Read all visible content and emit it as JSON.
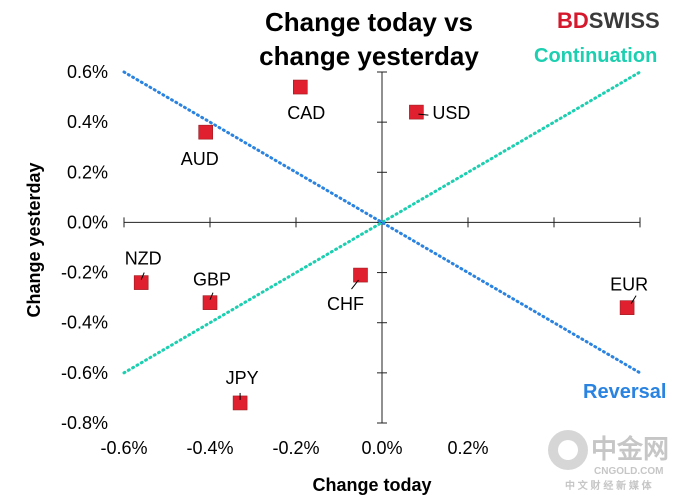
{
  "chart_data": {
    "type": "scatter",
    "title_line1": "Change today vs",
    "title_line2": "change yesterday",
    "xlabel": "Change today",
    "ylabel": "Change yesterday",
    "xlim": [
      -0.6,
      0.6
    ],
    "ylim": [
      -0.8,
      0.6
    ],
    "x_ticks": [
      {
        "value": -0.6,
        "label": "-0.6%"
      },
      {
        "value": -0.4,
        "label": "-0.4%"
      },
      {
        "value": -0.2,
        "label": "-0.2%"
      },
      {
        "value": 0.0,
        "label": "0.0%"
      },
      {
        "value": 0.2,
        "label": "0.2%"
      }
    ],
    "y_ticks": [
      {
        "value": 0.6,
        "label": "0.6%"
      },
      {
        "value": 0.4,
        "label": "0.4%"
      },
      {
        "value": 0.2,
        "label": "0.2%"
      },
      {
        "value": 0.0,
        "label": "0.0%"
      },
      {
        "value": -0.2,
        "label": "-0.2%"
      },
      {
        "value": -0.4,
        "label": "-0.4%"
      },
      {
        "value": -0.6,
        "label": "-0.6%"
      },
      {
        "value": -0.8,
        "label": "-0.8%"
      }
    ],
    "points": [
      {
        "name": "CAD",
        "x": -0.19,
        "y": 0.54
      },
      {
        "name": "USD",
        "x": 0.08,
        "y": 0.44
      },
      {
        "name": "AUD",
        "x": -0.41,
        "y": 0.36
      },
      {
        "name": "NZD",
        "x": -0.56,
        "y": -0.24
      },
      {
        "name": "GBP",
        "x": -0.4,
        "y": -0.32
      },
      {
        "name": "CHF",
        "x": -0.05,
        "y": -0.21
      },
      {
        "name": "EUR",
        "x": 0.57,
        "y": -0.34
      },
      {
        "name": "JPY",
        "x": -0.33,
        "y": -0.72
      }
    ],
    "lines": [
      {
        "name": "Continuation",
        "from": [
          -0.6,
          -0.6
        ],
        "to": [
          0.6,
          0.6
        ],
        "color": "#1ccfb0"
      },
      {
        "name": "Reversal",
        "from": [
          -0.6,
          0.6
        ],
        "to": [
          0.6,
          -0.6
        ],
        "color": "#2a83e0"
      }
    ],
    "marker_color": "#e0202e",
    "annotations": [
      {
        "text": "Continuation",
        "color": "#1ccfb0"
      },
      {
        "text": "Reversal",
        "color": "#2a83e0"
      }
    ],
    "grid": false
  },
  "logo": {
    "part1": "BD",
    "part2": "SWISS"
  },
  "watermark": {
    "main": "中金网",
    "sub": "CNGOLD.COM",
    "cn": "中 文 财 经 新 媒 体"
  }
}
